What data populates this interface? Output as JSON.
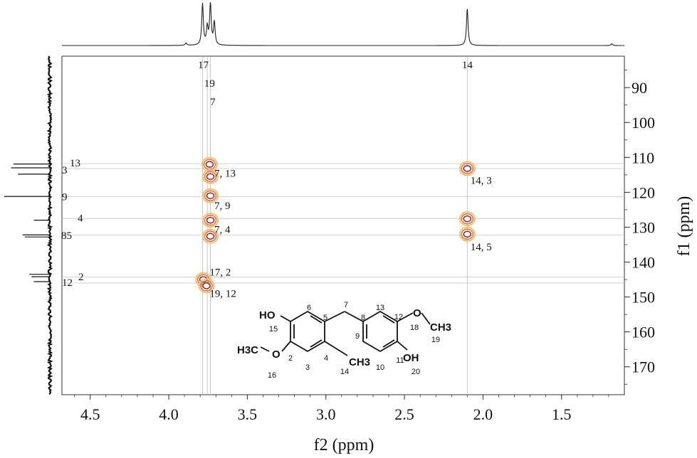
{
  "chart_data": {
    "type": "heatmap",
    "subtype": "2D NMR HMBC correlation spectrum",
    "xlabel": "f2 (ppm)",
    "ylabel": "f1 (ppm)",
    "xlim": [
      4.68,
      1.1
    ],
    "ylim": [
      81,
      178
    ],
    "x_reversed": true,
    "y_reversed": true,
    "x_ticks": [
      4.5,
      4.0,
      3.5,
      3.0,
      2.5,
      2.0,
      1.5
    ],
    "x_tick_labels": [
      "4.5",
      "4.0",
      "3.5",
      "3.0",
      "2.5",
      "2.0",
      "1.5"
    ],
    "y_ticks": [
      90,
      100,
      110,
      120,
      130,
      140,
      150,
      160,
      170
    ],
    "y_tick_labels": [
      "90",
      "100",
      "110",
      "120",
      "130",
      "140",
      "150",
      "160",
      "170"
    ],
    "contour_colors": [
      "#8b1a1a",
      "#d87850",
      "#f0c070"
    ],
    "top_projection": {
      "peaks": [
        {
          "ppm": 3.89,
          "height": 0.06
        },
        {
          "ppm": 3.785,
          "height": 1.0
        },
        {
          "ppm": 3.755,
          "height": 0.42
        },
        {
          "ppm": 3.735,
          "height": 1.0
        },
        {
          "ppm": 3.71,
          "height": 0.55
        },
        {
          "ppm": 2.1,
          "height": 0.9
        },
        {
          "ppm": 1.18,
          "height": 0.04
        }
      ],
      "labels": [
        {
          "text": "17",
          "ppm": 3.78
        },
        {
          "text": "19",
          "ppm": 3.74
        },
        {
          "text": "7",
          "ppm": 3.72
        },
        {
          "text": "14",
          "ppm": 2.1
        }
      ]
    },
    "left_projection": {
      "peaks": [
        {
          "ppm": 111.9,
          "height": 0.8
        },
        {
          "ppm": 113.0,
          "height": 0.85
        },
        {
          "ppm": 114.8,
          "height": 0.7
        },
        {
          "ppm": 121.2,
          "height": 1.0
        },
        {
          "ppm": 128.0,
          "height": 0.35
        },
        {
          "ppm": 132.2,
          "height": 0.6
        },
        {
          "ppm": 132.8,
          "height": 0.55
        },
        {
          "ppm": 143.5,
          "height": 0.45
        },
        {
          "ppm": 144.2,
          "height": 0.4
        },
        {
          "ppm": 145.6,
          "height": 0.35
        }
      ],
      "labels": [
        {
          "text": "3",
          "ppm": 113.6
        },
        {
          "text": "13",
          "ppm": 111.6
        },
        {
          "text": "9",
          "ppm": 121.2
        },
        {
          "text": "4",
          "ppm": 127.4
        },
        {
          "text": "85",
          "ppm": 132.4
        },
        {
          "text": "12",
          "ppm": 145.8
        },
        {
          "text": "2",
          "ppm": 144.2
        }
      ]
    },
    "cross_peaks": [
      {
        "label": "7, 13",
        "f2": 3.74,
        "f1": 112.0,
        "label_f2": 3.71,
        "label_f1": 114.5
      },
      {
        "label": "",
        "f2": 3.735,
        "f1": 115.5
      },
      {
        "label": "7, 9",
        "f2": 3.735,
        "f1": 121.0,
        "label_f2": 3.71,
        "label_f1": 123.8
      },
      {
        "label": "7, 4",
        "f2": 3.735,
        "f1": 128.0,
        "label_f2": 3.71,
        "label_f1": 130.6
      },
      {
        "label": "",
        "f2": 3.735,
        "f1": 132.6
      },
      {
        "label": "17, 2",
        "f2": 3.78,
        "f1": 145.0,
        "label_f2": 3.74,
        "label_f1": 142.8
      },
      {
        "label": "19, 12",
        "f2": 3.76,
        "f1": 146.8,
        "label_f2": 3.74,
        "label_f1": 149.0
      },
      {
        "label": "14, 3",
        "f2": 2.1,
        "f1": 113.2,
        "label_f2": 2.08,
        "label_f1": 116.6
      },
      {
        "label": "",
        "f2": 2.1,
        "f1": 127.6
      },
      {
        "label": "14, 5",
        "f2": 2.1,
        "f1": 132.0,
        "label_f2": 2.08,
        "label_f1": 135.6
      }
    ],
    "grid_lines_f2": [
      3.785,
      3.755,
      3.735,
      2.1
    ],
    "grid_lines_f1": [
      111.8,
      113.2,
      121.2,
      127.5,
      132.3,
      144.3,
      146.0
    ],
    "structure": {
      "group_labels": {
        "ho_left": "HO",
        "methoxy_left": "H3C",
        "methoxy_o_left": "O",
        "methyl": "CH3",
        "oh_right": "OH",
        "methoxy_o_right": "O",
        "methoxy_right": "CH3"
      },
      "atom_numbers": [
        "6",
        "5",
        "7",
        "8",
        "13",
        "12",
        "15",
        "18",
        "19",
        "9",
        "2",
        "4",
        "11",
        "3",
        "14",
        "10",
        "16",
        "20"
      ]
    }
  }
}
